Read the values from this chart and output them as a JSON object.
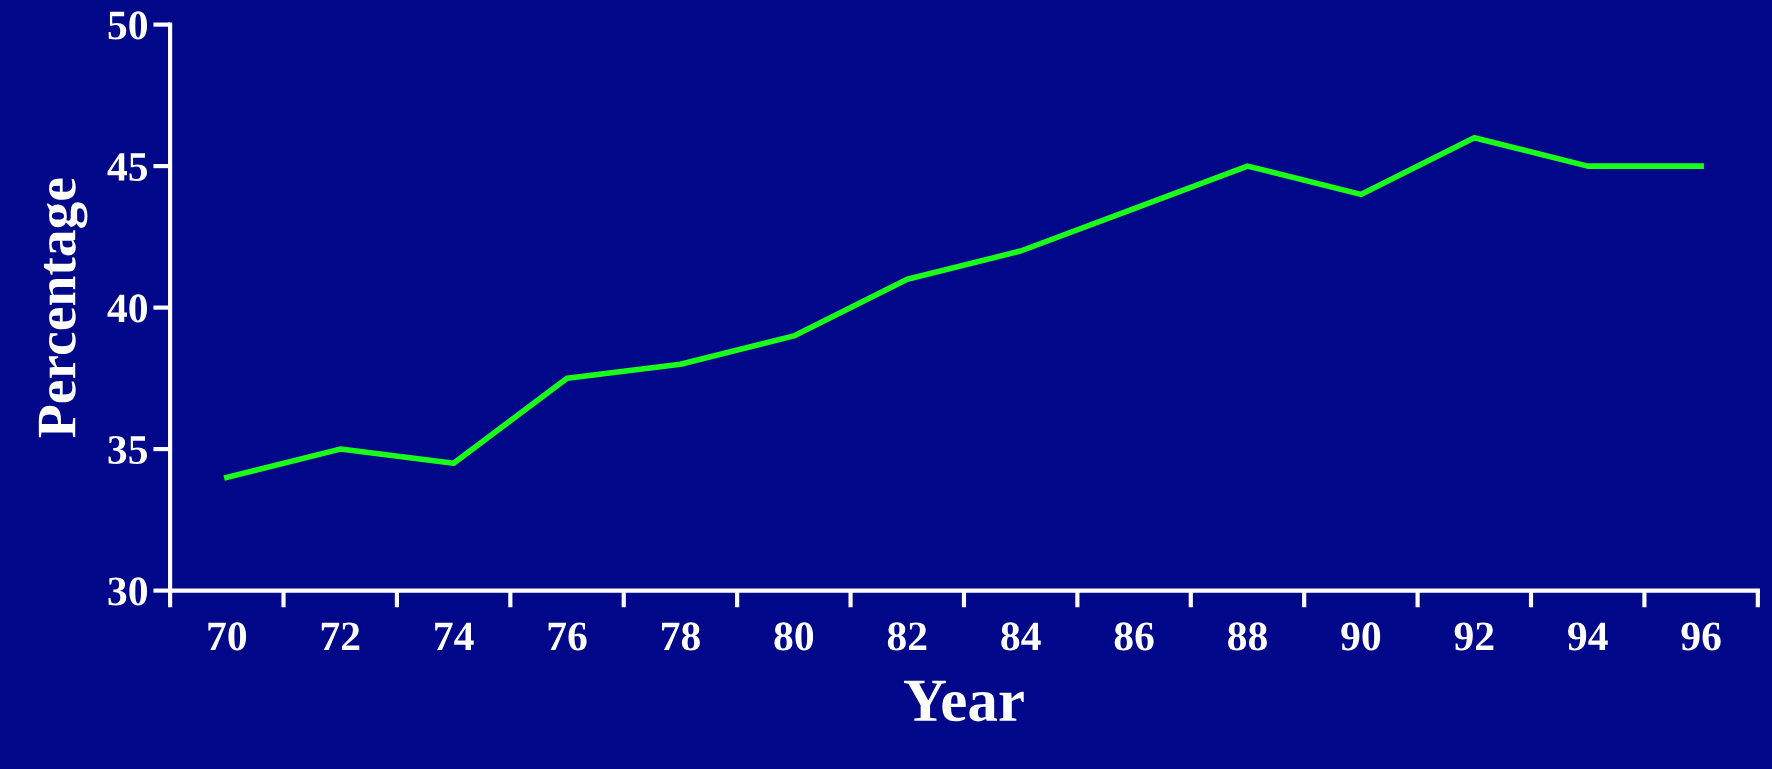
{
  "chart_data": {
    "type": "line",
    "xlabel": "Year",
    "ylabel": "Percentage",
    "categories": [
      "70",
      "72",
      "74",
      "76",
      "78",
      "80",
      "82",
      "84",
      "86",
      "88",
      "90",
      "92",
      "94",
      "96"
    ],
    "series": [
      {
        "color": "#1aff1a",
        "values": [
          34,
          35,
          34.5,
          37.5,
          38,
          39,
          41,
          42,
          43.5,
          45,
          44,
          46,
          45,
          45
        ]
      }
    ],
    "ylim": [
      30,
      50
    ],
    "yticks": [
      30,
      35,
      40,
      45,
      50
    ],
    "grid": false,
    "marker": "none",
    "line_style": "solid"
  }
}
